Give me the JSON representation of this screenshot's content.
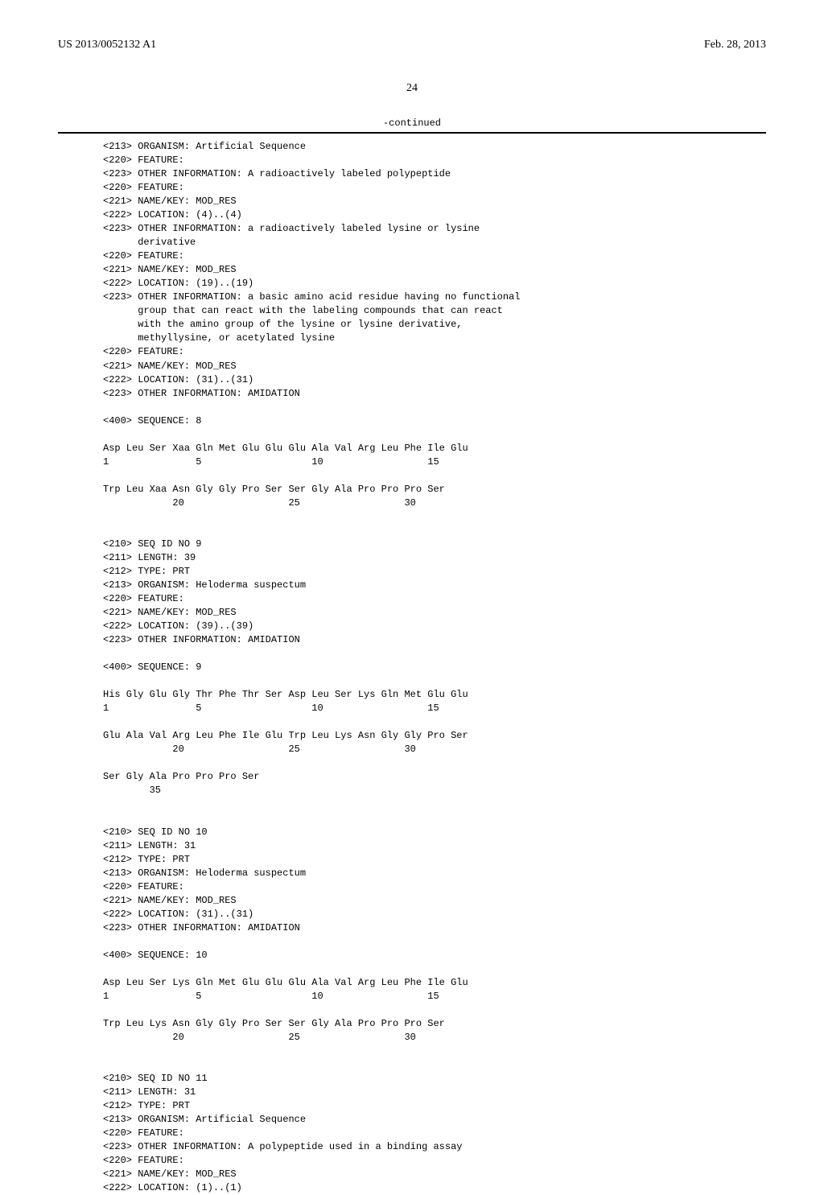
{
  "header": {
    "pub_no": "US 2013/0052132 A1",
    "pub_date": "Feb. 28, 2013"
  },
  "page_number": "24",
  "continued_label": "-continued",
  "seq_text": "<213> ORGANISM: Artificial Sequence\n<220> FEATURE:\n<223> OTHER INFORMATION: A radioactively labeled polypeptide\n<220> FEATURE:\n<221> NAME/KEY: MOD_RES\n<222> LOCATION: (4)..(4)\n<223> OTHER INFORMATION: a radioactively labeled lysine or lysine\n      derivative\n<220> FEATURE:\n<221> NAME/KEY: MOD_RES\n<222> LOCATION: (19)..(19)\n<223> OTHER INFORMATION: a basic amino acid residue having no functional\n      group that can react with the labeling compounds that can react\n      with the amino group of the lysine or lysine derivative,\n      methyllysine, or acetylated lysine\n<220> FEATURE:\n<221> NAME/KEY: MOD_RES\n<222> LOCATION: (31)..(31)\n<223> OTHER INFORMATION: AMIDATION\n\n<400> SEQUENCE: 8\n\nAsp Leu Ser Xaa Gln Met Glu Glu Glu Ala Val Arg Leu Phe Ile Glu\n1               5                   10                  15\n\nTrp Leu Xaa Asn Gly Gly Pro Ser Ser Gly Ala Pro Pro Pro Ser\n            20                  25                  30\n\n\n<210> SEQ ID NO 9\n<211> LENGTH: 39\n<212> TYPE: PRT\n<213> ORGANISM: Heloderma suspectum\n<220> FEATURE:\n<221> NAME/KEY: MOD_RES\n<222> LOCATION: (39)..(39)\n<223> OTHER INFORMATION: AMIDATION\n\n<400> SEQUENCE: 9\n\nHis Gly Glu Gly Thr Phe Thr Ser Asp Leu Ser Lys Gln Met Glu Glu\n1               5                   10                  15\n\nGlu Ala Val Arg Leu Phe Ile Glu Trp Leu Lys Asn Gly Gly Pro Ser\n            20                  25                  30\n\nSer Gly Ala Pro Pro Pro Ser\n        35\n\n\n<210> SEQ ID NO 10\n<211> LENGTH: 31\n<212> TYPE: PRT\n<213> ORGANISM: Heloderma suspectum\n<220> FEATURE:\n<221> NAME/KEY: MOD_RES\n<222> LOCATION: (31)..(31)\n<223> OTHER INFORMATION: AMIDATION\n\n<400> SEQUENCE: 10\n\nAsp Leu Ser Lys Gln Met Glu Glu Glu Ala Val Arg Leu Phe Ile Glu\n1               5                   10                  15\n\nTrp Leu Lys Asn Gly Gly Pro Ser Ser Gly Ala Pro Pro Pro Ser\n            20                  25                  30\n\n\n<210> SEQ ID NO 11\n<211> LENGTH: 31\n<212> TYPE: PRT\n<213> ORGANISM: Artificial Sequence\n<220> FEATURE:\n<223> OTHER INFORMATION: A polypeptide used in a binding assay\n<220> FEATURE:\n<221> NAME/KEY: MOD_RES\n<222> LOCATION: (1)..(1)"
}
